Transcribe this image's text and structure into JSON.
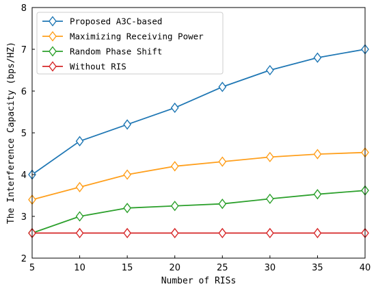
{
  "chart_data": {
    "type": "line",
    "xlabel": "Number of RISs",
    "ylabel": "The Interference Capacity (bps/HZ)",
    "x": [
      5,
      10,
      15,
      20,
      25,
      30,
      35,
      40
    ],
    "xlim": [
      5,
      40
    ],
    "ylim": [
      2,
      8
    ],
    "xticks": [
      5,
      10,
      15,
      20,
      25,
      30,
      35,
      40
    ],
    "yticks": [
      2,
      3,
      4,
      5,
      6,
      7,
      8
    ],
    "grid": false,
    "legend_position": "top-left",
    "marker": "diamond",
    "series": [
      {
        "name": "Proposed A3C-based",
        "color": "#1f77b4",
        "values": [
          4.0,
          4.8,
          5.2,
          5.6,
          6.1,
          6.5,
          6.8,
          7.0
        ]
      },
      {
        "name": "Maximizing Receiving Power",
        "color": "#ff9f1c",
        "values": [
          3.4,
          3.7,
          4.0,
          4.2,
          4.31,
          4.42,
          4.49,
          4.53
        ]
      },
      {
        "name": "Random Phase Shift",
        "color": "#2ca02c",
        "values": [
          2.6,
          3.0,
          3.2,
          3.25,
          3.3,
          3.42,
          3.53,
          3.62
        ]
      },
      {
        "name": "Without RIS",
        "color": "#d62728",
        "values": [
          2.6,
          2.6,
          2.6,
          2.6,
          2.6,
          2.6,
          2.6,
          2.6
        ]
      }
    ]
  }
}
